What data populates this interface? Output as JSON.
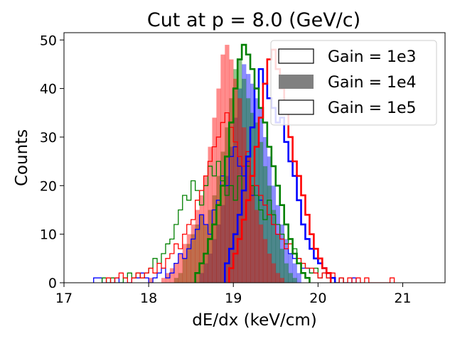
{
  "chart_data": {
    "type": "histogram",
    "title": "Cut at p = 8.0 (GeV/c)",
    "xlabel": "dE/dx (keV/cm)",
    "ylabel": "Counts",
    "xlim": [
      17,
      21.5
    ],
    "ylim": [
      0,
      51.5
    ],
    "xticks": [
      "17",
      "18",
      "19",
      "20",
      "21"
    ],
    "xtick_values": [
      17,
      18,
      19,
      20,
      21
    ],
    "yticks": [
      "0",
      "10",
      "20",
      "30",
      "40",
      "50"
    ],
    "ytick_values": [
      0,
      10,
      20,
      30,
      40,
      50
    ],
    "grid": false,
    "legend_position": "upper-right",
    "legend": [
      {
        "label": "Gain = 1e3",
        "style": "outline"
      },
      {
        "label": "Gain = 1e4",
        "style": "filled"
      },
      {
        "label": "Gain = 1e5",
        "style": "outline"
      }
    ],
    "bin_width": 0.05,
    "series": [
      {
        "gain": "1e3",
        "style": "thin-step",
        "color": "#0000ff",
        "x0": 17.35,
        "values": [
          1,
          1,
          0,
          0,
          0,
          1,
          0,
          0,
          0,
          1,
          1,
          2,
          1,
          0,
          1,
          2,
          3,
          1,
          2,
          4,
          6,
          5,
          7,
          9,
          11,
          14,
          12,
          10,
          15,
          17,
          22,
          20,
          26,
          28,
          24,
          22,
          25,
          18,
          20,
          17,
          16,
          14,
          12,
          10,
          9,
          7,
          6,
          5,
          4,
          3,
          3,
          2,
          2,
          1,
          2,
          1,
          1,
          0,
          1,
          0,
          0,
          1
        ]
      },
      {
        "gain": "1e3",
        "style": "thin-step",
        "color": "#008000",
        "x0": 17.45,
        "values": [
          1,
          0,
          1,
          0,
          0,
          1,
          2,
          1,
          2,
          1,
          2,
          3,
          5,
          4,
          6,
          8,
          9,
          12,
          15,
          18,
          17,
          21,
          19,
          16,
          20,
          24,
          22,
          25,
          21,
          18,
          20,
          17,
          22,
          19,
          24,
          20,
          18,
          15,
          13,
          17,
          14,
          12,
          10,
          8,
          9,
          7,
          5,
          4,
          3,
          2,
          3,
          1,
          2,
          1,
          1,
          0,
          1
        ]
      },
      {
        "gain": "1e3",
        "style": "thin-step",
        "color": "#ff0000",
        "x0": 17.5,
        "values": [
          1,
          0,
          1,
          2,
          1,
          0,
          1,
          2,
          1,
          2,
          3,
          2,
          4,
          3,
          5,
          6,
          8,
          7,
          10,
          12,
          13,
          17,
          19,
          22,
          25,
          28,
          30,
          33,
          35,
          32,
          29,
          26,
          24,
          27,
          22,
          20,
          18,
          16,
          14,
          12,
          10,
          9,
          7,
          8,
          6,
          5,
          4,
          3,
          3,
          2,
          1,
          2,
          1,
          2,
          0,
          1,
          0,
          1,
          0,
          1,
          0,
          1,
          0,
          0,
          0,
          0,
          0,
          1
        ]
      },
      {
        "gain": "1e4",
        "style": "filled",
        "color": "#0000ff",
        "opacity": 0.45,
        "x0": 18.6,
        "values": [
          2,
          4,
          6,
          9,
          12,
          16,
          22,
          28,
          34,
          40,
          45,
          43,
          41,
          38,
          36,
          30,
          26,
          20,
          16,
          12,
          9,
          6,
          4,
          2
        ]
      },
      {
        "gain": "1e4",
        "style": "filled",
        "color": "#008000",
        "opacity": 0.45,
        "x0": 18.3,
        "values": [
          1,
          2,
          5,
          8,
          10,
          12,
          14,
          12,
          15,
          18,
          22,
          27,
          32,
          38,
          44,
          46,
          42,
          38,
          35,
          33,
          29,
          24,
          20,
          15,
          10,
          7,
          4,
          2,
          1
        ]
      },
      {
        "gain": "1e4",
        "style": "filled",
        "color": "#ff0000",
        "opacity": 0.45,
        "x0": 18.0,
        "values": [
          1,
          0,
          0,
          1,
          2,
          3,
          4,
          6,
          8,
          10,
          12,
          15,
          18,
          22,
          28,
          34,
          40,
          47,
          49,
          46,
          42,
          38,
          32,
          26,
          20,
          15,
          12,
          9,
          6,
          4,
          2,
          1
        ]
      },
      {
        "gain": "1e5",
        "style": "thick-step",
        "color": "#0000ff",
        "x0": 18.9,
        "values": [
          4,
          7,
          10,
          14,
          19,
          26,
          32,
          40,
          44,
          41,
          38,
          36,
          33,
          34,
          29,
          25,
          22,
          17,
          12,
          9,
          7,
          5,
          4,
          3,
          2,
          1
        ]
      },
      {
        "gain": "1e5",
        "style": "thick-step",
        "color": "#008000",
        "x0": 18.55,
        "values": [
          2,
          4,
          6,
          9,
          12,
          16,
          20,
          26,
          33,
          40,
          46,
          49,
          47,
          44,
          40,
          36,
          33,
          28,
          24,
          20,
          16,
          12,
          9,
          6,
          4,
          2,
          1
        ]
      },
      {
        "gain": "1e5",
        "style": "thick-step",
        "color": "#ff0000",
        "x0": 18.95,
        "values": [
          3,
          6,
          9,
          13,
          17,
          22,
          28,
          34,
          41,
          46,
          48,
          44,
          40,
          35,
          30,
          25,
          22,
          18,
          14,
          10,
          7,
          5,
          3,
          2
        ]
      }
    ]
  }
}
